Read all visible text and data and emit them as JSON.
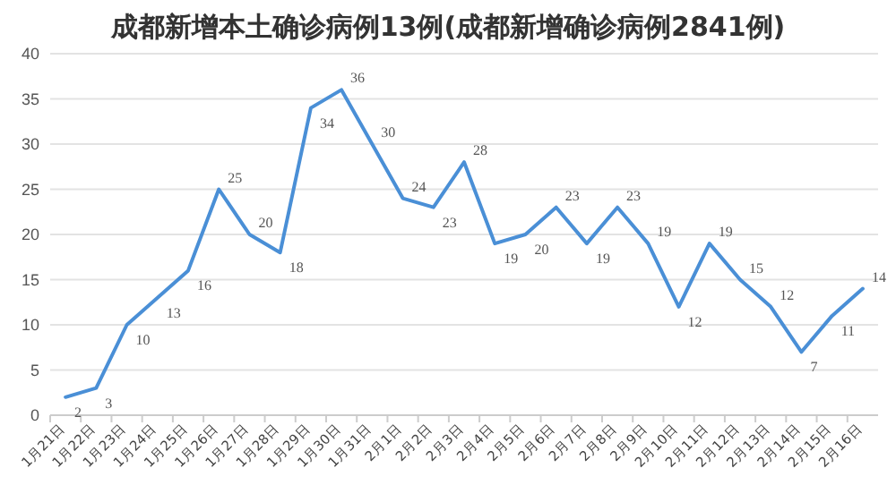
{
  "chart_data": {
    "type": "line",
    "title": "成都新增本土确诊病例13例(成都新增确诊病例2841例)",
    "categories": [
      "1月21日",
      "1月22日",
      "1月23日",
      "1月24日",
      "1月25日",
      "1月26日",
      "1月27日",
      "1月28日",
      "1月29日",
      "1月30日",
      "1月31日",
      "2月1日",
      "2月2日",
      "2月3日",
      "2月4日",
      "2月5日",
      "2月6日",
      "2月7日",
      "2月8日",
      "2月9日",
      "2月10日",
      "2月11日",
      "2月12日",
      "2月13日",
      "2月14日",
      "2月15日",
      "2月16日"
    ],
    "values": [
      2,
      3,
      10,
      13,
      16,
      25,
      20,
      18,
      34,
      36,
      30,
      24,
      23,
      28,
      19,
      20,
      23,
      19,
      23,
      19,
      12,
      19,
      15,
      12,
      7,
      11,
      14
    ],
    "color": "#4a8fd6",
    "ylim": [
      0,
      40
    ],
    "yticks": [
      0,
      5,
      10,
      15,
      20,
      25,
      30,
      35,
      40
    ],
    "grid": "y",
    "data_labels": true
  }
}
